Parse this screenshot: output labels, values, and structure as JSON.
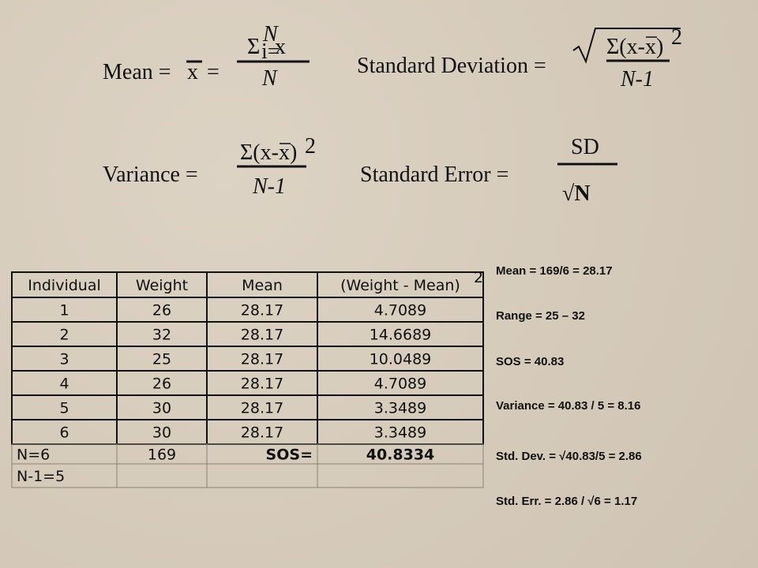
{
  "formulas": {
    "mean": {
      "label": "Mean =",
      "xbar": "x",
      "equals": "=",
      "sigma": "Σ",
      "upper": "N",
      "lower": "i=",
      "term": "x",
      "denominator": "N"
    },
    "standard_deviation": {
      "label": "Standard Deviation =",
      "numerator_start": "Σ(x-",
      "xbar": "x",
      "numerator_end": ")",
      "power": "2",
      "denominator": "N-1"
    },
    "variance": {
      "label": "Variance =",
      "numerator_start": "Σ(x-",
      "xbar": "x",
      "numerator_end": ")",
      "power": "2",
      "denominator": "N-1"
    },
    "standard_error": {
      "label": "Standard Error =",
      "numerator": "SD",
      "denominator": "√N"
    }
  },
  "table": {
    "header": [
      "Individual",
      "Weight",
      "Mean",
      "(Weight - Mean)"
    ],
    "header_power": "2",
    "rows": [
      [
        "1",
        "26",
        "28.17",
        "4.7089"
      ],
      [
        "2",
        "32",
        "28.17",
        "14.6689"
      ],
      [
        "3",
        "25",
        "28.17",
        "10.0489"
      ],
      [
        "4",
        "26",
        "28.17",
        "4.7089"
      ],
      [
        "5",
        "30",
        "28.17",
        "3.3489"
      ],
      [
        "6",
        "30",
        "28.17",
        "3.3489"
      ]
    ],
    "summary_rows": [
      [
        "N=6",
        "169",
        "SOS=",
        "40.8334"
      ],
      [
        "N-1=5"
      ]
    ]
  },
  "notes": [
    "Mean = 169/6 = 28.17",
    "Range = 25 – 32",
    "SOS = 40.83",
    "Variance = 40.83 / 5 = 8.16",
    "Std. Dev. = √40.83/5 = 2.86",
    "Std. Err. = 2.86 / √6 = 1.17"
  ]
}
